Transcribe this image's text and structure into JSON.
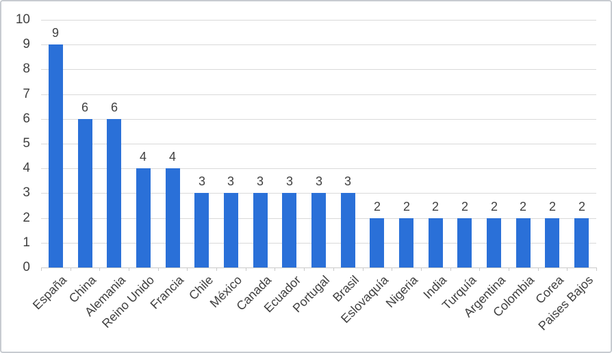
{
  "chart_data": {
    "type": "bar",
    "title": "",
    "xlabel": "",
    "ylabel": "",
    "categories": [
      "España",
      "China",
      "Alemania",
      "Reino Unido",
      "Francia",
      "Chile",
      "México",
      "Canada",
      "Ecuador",
      "Portugal",
      "Brasil",
      "Eslovaquía",
      "Nigeria",
      "India",
      "Turquía",
      "Argentina",
      "Colombia",
      "Corea",
      "Paises Bajos"
    ],
    "values": [
      9,
      6,
      6,
      4,
      4,
      3,
      3,
      3,
      3,
      3,
      3,
      2,
      2,
      2,
      2,
      2,
      2,
      2,
      2
    ],
    "data_labels": [
      "9",
      "6",
      "6",
      "4",
      "4",
      "3",
      "3",
      "3",
      "3",
      "3",
      "3",
      "2",
      "2",
      "2",
      "2",
      "2",
      "2",
      "2",
      "2"
    ],
    "yticks": [
      0,
      1,
      2,
      3,
      4,
      5,
      6,
      7,
      8,
      9,
      10
    ],
    "ytick_labels": [
      "0",
      "1",
      "2",
      "3",
      "4",
      "5",
      "6",
      "7",
      "8",
      "9",
      "10"
    ],
    "ylim": [
      0,
      10
    ],
    "grid": true,
    "legend": false,
    "colors": {
      "bar": "#2a70d8",
      "gridline": "#d9d9d9",
      "axis": "#c9c9c9",
      "text": "#404040",
      "background": "#ffffff",
      "border": "#c7cbd0"
    }
  }
}
